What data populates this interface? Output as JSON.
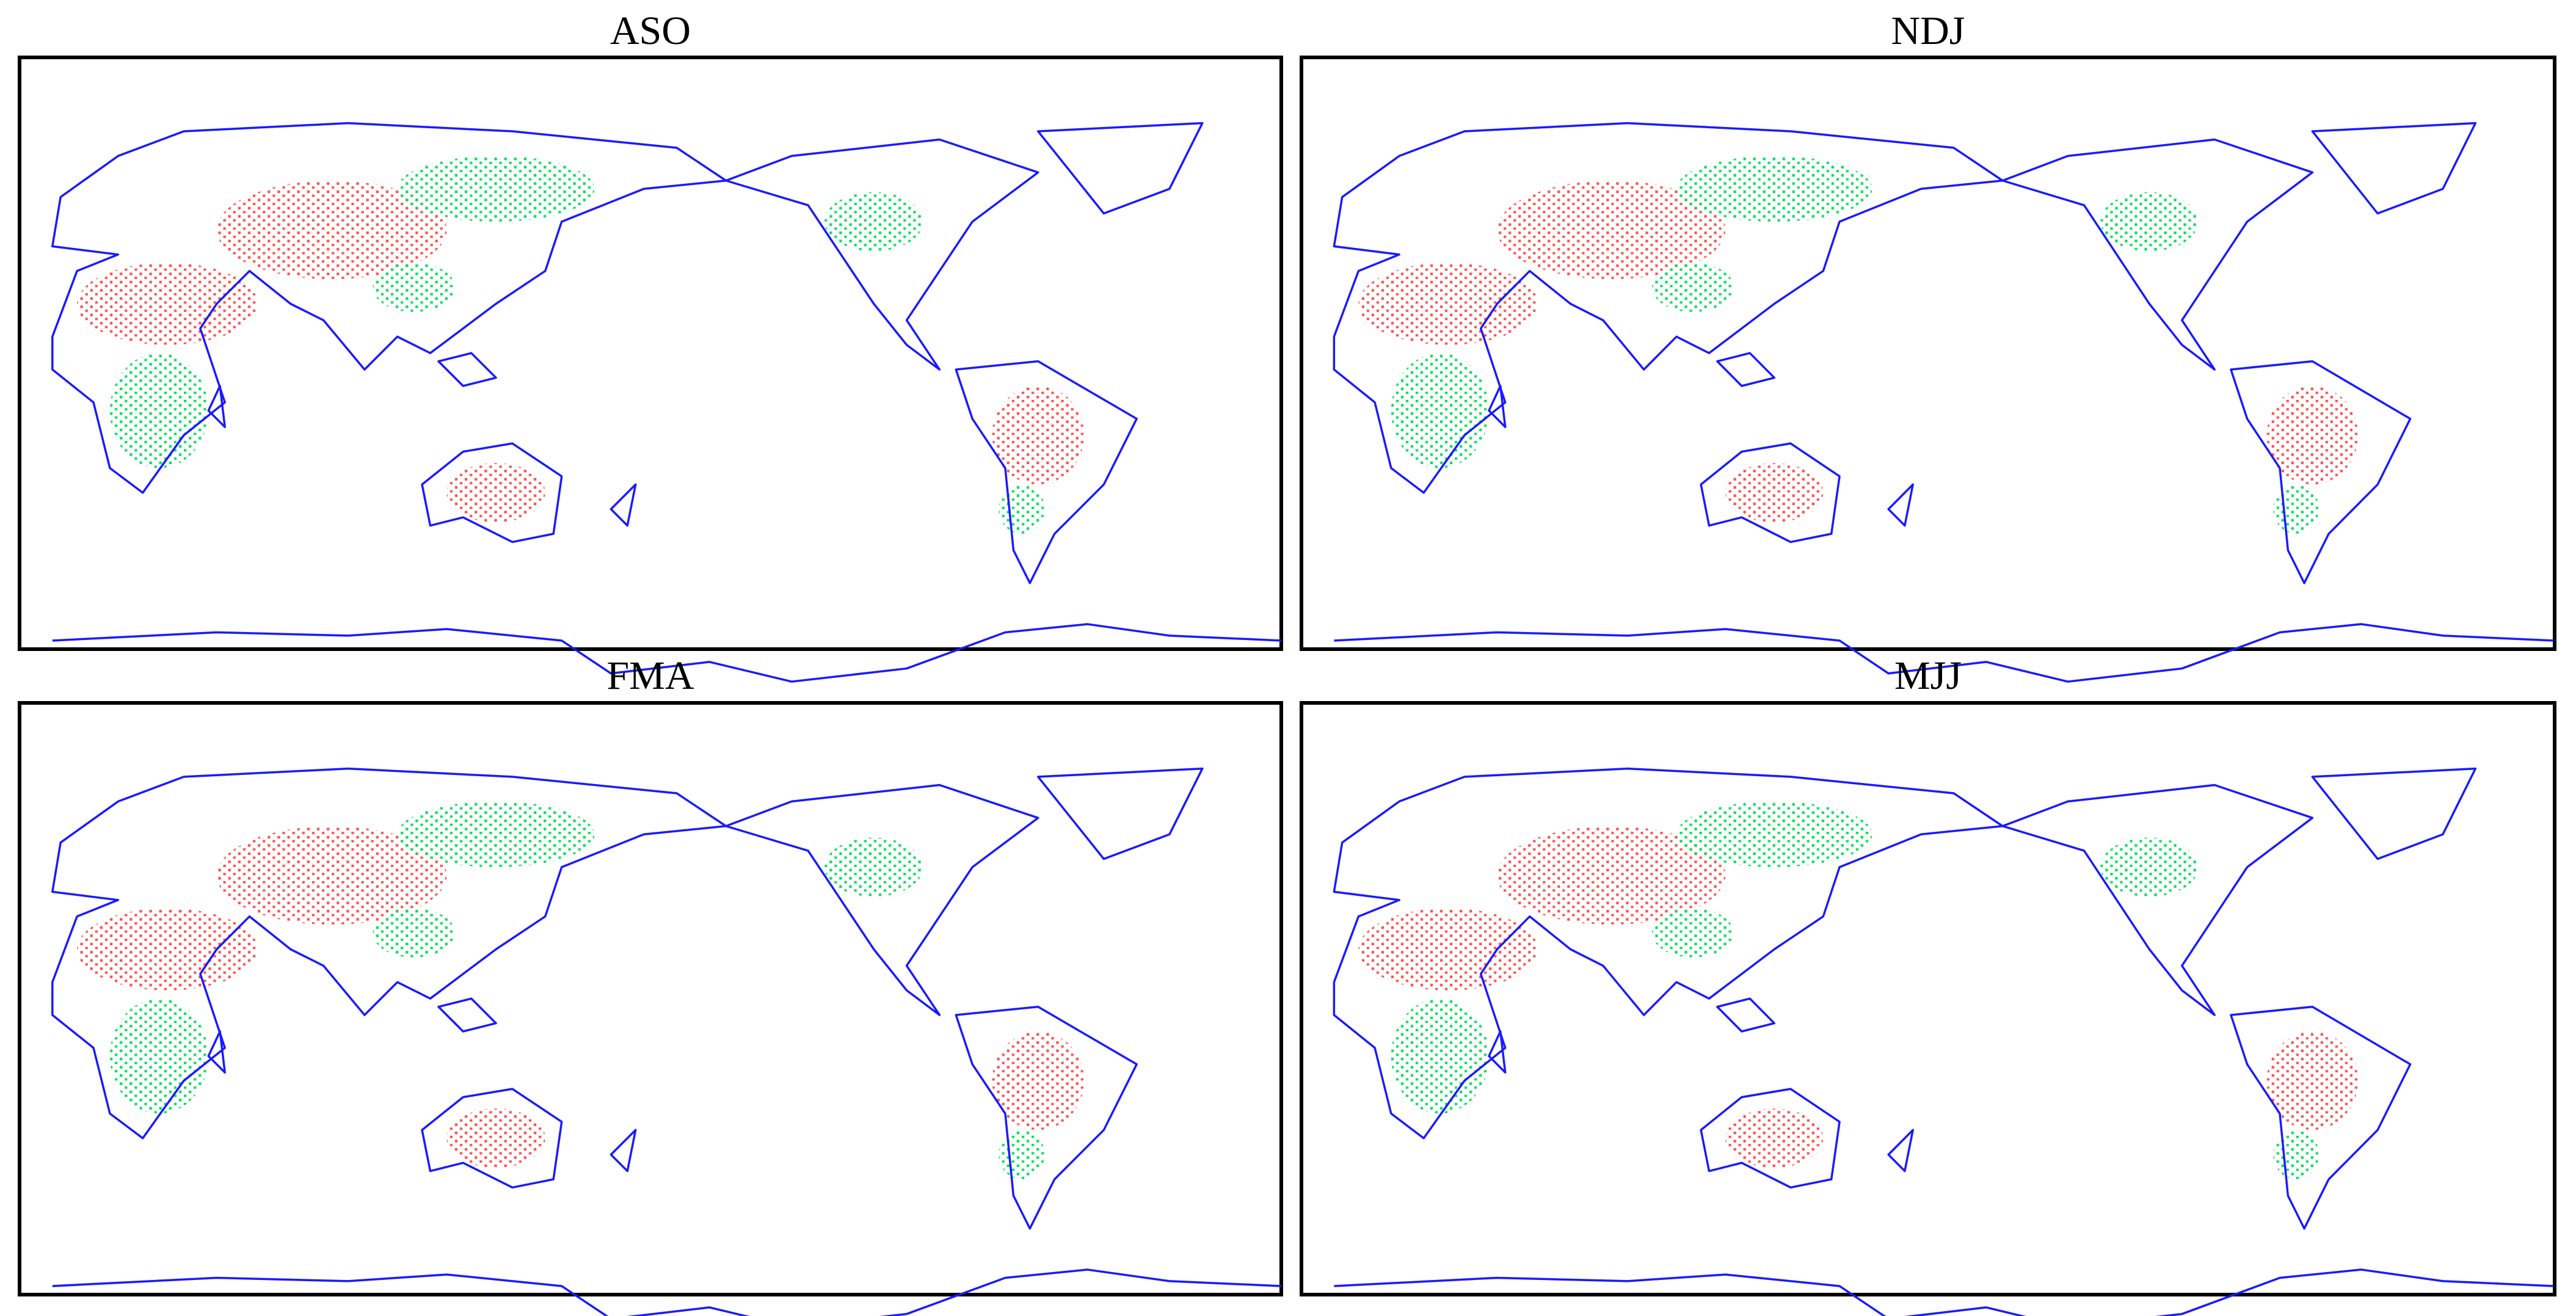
{
  "panels": [
    {
      "title": "ASO"
    },
    {
      "title": "NDJ"
    },
    {
      "title": "FMA"
    },
    {
      "title": "MJJ"
    }
  ]
}
